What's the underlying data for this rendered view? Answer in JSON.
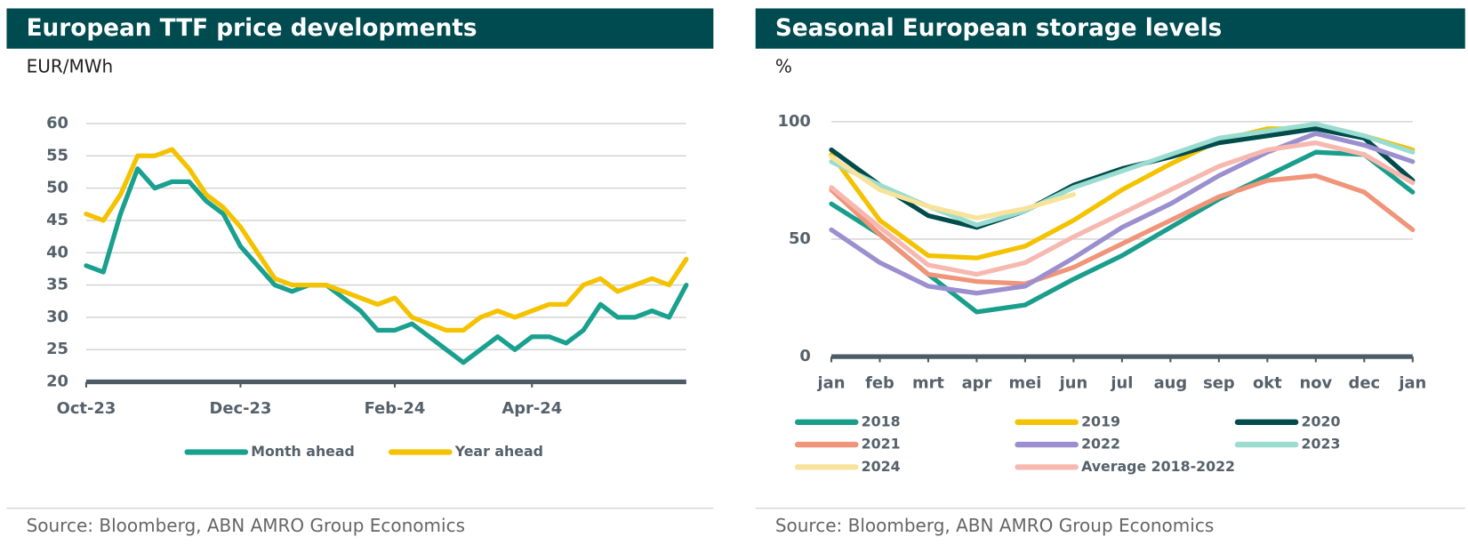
{
  "chart_data": [
    {
      "type": "line",
      "title": "European TTF price developments",
      "y_label": "EUR/MWh",
      "source": "Source: Bloomberg, ABN AMRO Group Economics",
      "categories": [
        "Oct-23",
        null,
        null,
        null,
        null,
        null,
        null,
        null,
        null,
        "Dec-23",
        null,
        null,
        null,
        null,
        null,
        null,
        null,
        null,
        "Feb-24",
        null,
        null,
        null,
        null,
        null,
        null,
        null,
        "Apr-24",
        null,
        null,
        null,
        null,
        null,
        null,
        null,
        null,
        null
      ],
      "series": [
        {
          "name": "Month ahead",
          "color": "#1aa08f",
          "values": [
            38,
            37,
            46,
            53,
            50,
            51,
            51,
            48,
            46,
            41,
            38,
            35,
            34,
            35,
            35,
            33,
            31,
            28,
            28,
            29,
            27,
            25,
            23,
            25,
            27,
            25,
            27,
            27,
            26,
            28,
            32,
            30,
            30,
            31,
            30,
            35
          ]
        },
        {
          "name": "Year ahead",
          "color": "#f5c200",
          "values": [
            46,
            45,
            49,
            55,
            55,
            56,
            53,
            49,
            47,
            44,
            40,
            36,
            35,
            35,
            35,
            34,
            33,
            32,
            33,
            30,
            29,
            28,
            28,
            30,
            31,
            30,
            31,
            32,
            32,
            35,
            36,
            34,
            35,
            36,
            35,
            39
          ]
        }
      ],
      "ylim": [
        20,
        60
      ],
      "yticks": [
        20,
        25,
        30,
        35,
        40,
        45,
        50,
        55,
        60
      ],
      "grid": true,
      "legend": "bottom"
    },
    {
      "type": "line",
      "title": "Seasonal European storage levels",
      "y_label": "%",
      "source": "Source: Bloomberg, ABN AMRO Group Economics",
      "categories": [
        "jan",
        "feb",
        "mrt",
        "apr",
        "mei",
        "jun",
        "jul",
        "aug",
        "sep",
        "okt",
        "nov",
        "dec",
        "jan"
      ],
      "series": [
        {
          "name": "2018",
          "color": "#1a9e8c",
          "values": [
            65,
            52,
            35,
            19,
            22,
            33,
            43,
            55,
            67,
            77,
            87,
            86,
            70
          ]
        },
        {
          "name": "2019",
          "color": "#f5c200",
          "values": [
            86,
            58,
            43,
            42,
            47,
            58,
            71,
            82,
            92,
            97,
            97,
            94,
            88
          ]
        },
        {
          "name": "2020",
          "color": "#004c4c",
          "values": [
            88,
            73,
            60,
            55,
            62,
            73,
            80,
            85,
            91,
            94,
            97,
            93,
            75
          ]
        },
        {
          "name": "2021",
          "color": "#f0947a",
          "values": [
            71,
            52,
            35,
            32,
            31,
            38,
            48,
            58,
            68,
            75,
            77,
            70,
            54
          ]
        },
        {
          "name": "2022",
          "color": "#9b8fcf",
          "values": [
            54,
            40,
            30,
            27,
            30,
            42,
            55,
            65,
            77,
            87,
            95,
            90,
            83
          ]
        },
        {
          "name": "2023",
          "color": "#9adcd0",
          "values": [
            83,
            73,
            64,
            56,
            62,
            72,
            79,
            86,
            93,
            96,
            99,
            94,
            87
          ]
        },
        {
          "name": "2024",
          "color": "#f7e39a",
          "values": [
            85,
            71,
            64,
            59,
            63,
            69,
            null,
            null,
            null,
            null,
            null,
            null,
            null
          ]
        },
        {
          "name": "Average 2018-2022",
          "color": "#f7b8b0",
          "values": [
            72,
            55,
            39,
            35,
            40,
            51,
            61,
            71,
            81,
            88,
            91,
            86,
            74
          ]
        }
      ],
      "ylim": [
        0,
        100
      ],
      "yticks": [
        0,
        50,
        100
      ],
      "grid": true,
      "legend": "bottom"
    }
  ]
}
